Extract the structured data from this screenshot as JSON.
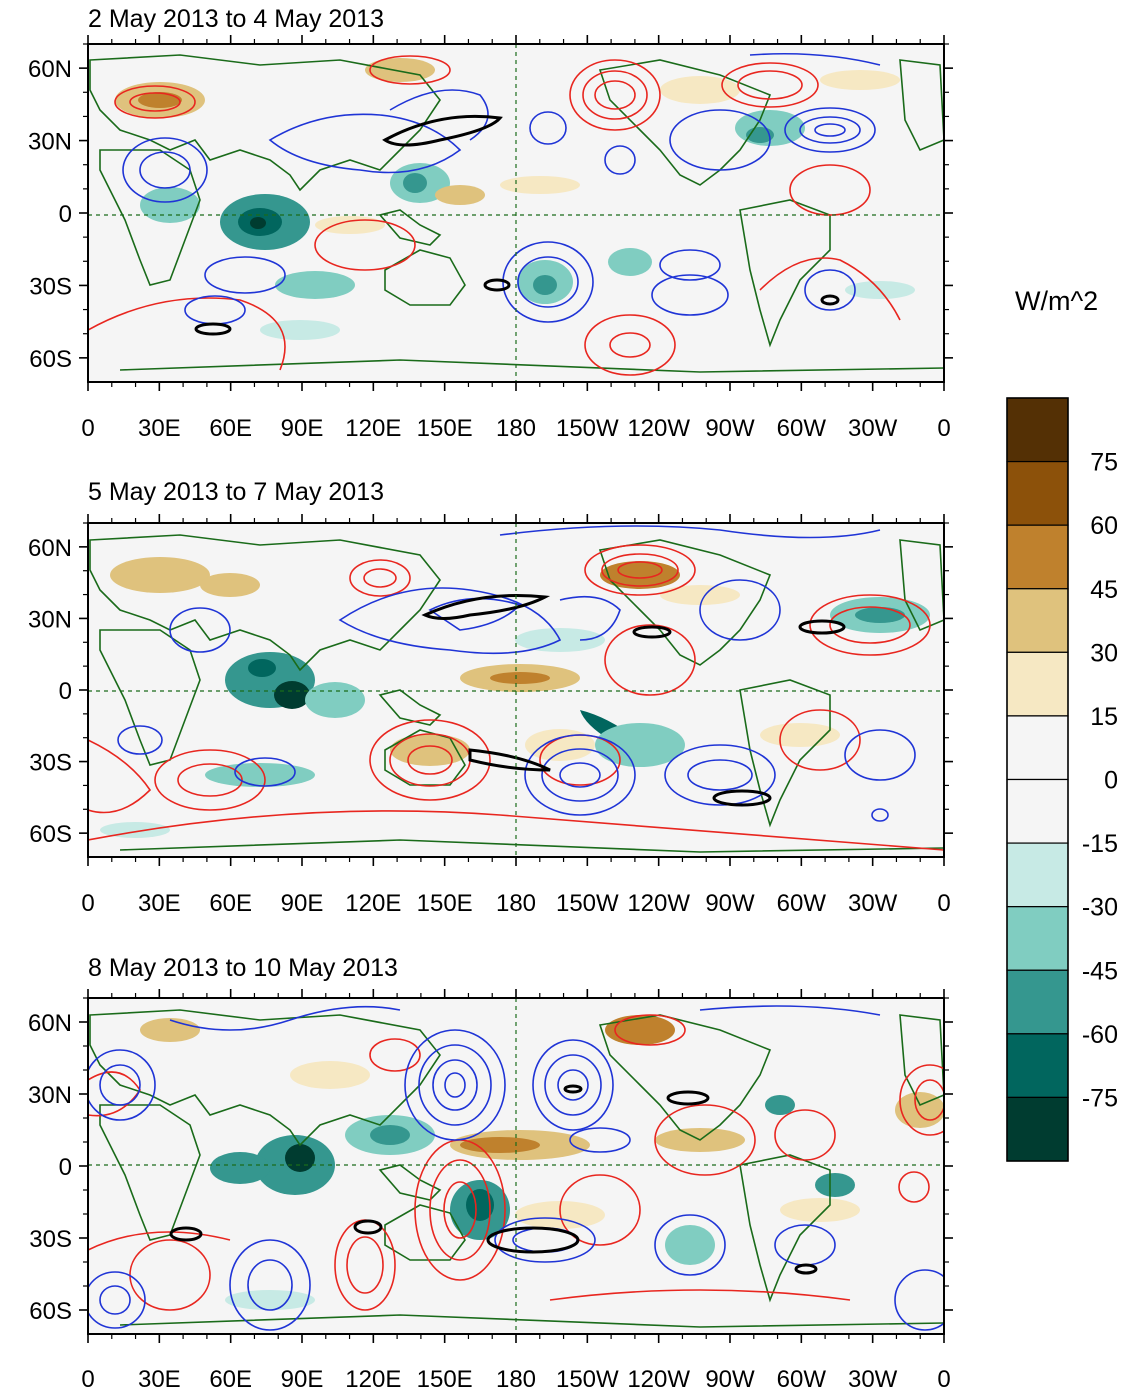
{
  "figure": {
    "panels": [
      {
        "title": "2 May 2013 to 4 May 2013"
      },
      {
        "title": "5 May 2013 to 7 May 2013"
      },
      {
        "title": "8 May 2013 to 10 May 2013"
      }
    ],
    "lon_ticks": [
      "0",
      "30E",
      "60E",
      "90E",
      "120E",
      "150E",
      "180",
      "150W",
      "120W",
      "90W",
      "60W",
      "30W",
      "0"
    ],
    "lat_ticks": [
      "60N",
      "30N",
      "0",
      "30S",
      "60S"
    ],
    "colorbar": {
      "units": "W/m^2",
      "labels": [
        "75",
        "60",
        "45",
        "30",
        "15",
        "0",
        "-15",
        "-30",
        "-45",
        "-60",
        "-75"
      ],
      "colors": [
        "#543005",
        "#8c510a",
        "#bf812d",
        "#dfc27d",
        "#f6e8c3",
        "#f5f5f5",
        "#f5f5f5",
        "#c7eae5",
        "#80cdc1",
        "#35978f",
        "#01665e",
        "#003c30"
      ]
    },
    "colors": {
      "coast": "#1a6b1a",
      "contour_positive": "#e8261f",
      "contour_negative": "#1f34d6",
      "highlight_contour": "#000000"
    }
  },
  "chart_data": {
    "type": "map",
    "variable_units": "W/m^2",
    "lon_range": [
      0,
      360
    ],
    "lat_range": [
      -70,
      70
    ],
    "shading_levels": [
      -75,
      -60,
      -45,
      -30,
      -15,
      0,
      15,
      30,
      45,
      60,
      75
    ],
    "contours": "red = positive, blue = negative, black = highlighted",
    "panels": [
      {
        "title": "2 May 2013 to 4 May 2013"
      },
      {
        "title": "5 May 2013 to 7 May 2013"
      },
      {
        "title": "8 May 2013 to 10 May 2013"
      }
    ]
  }
}
